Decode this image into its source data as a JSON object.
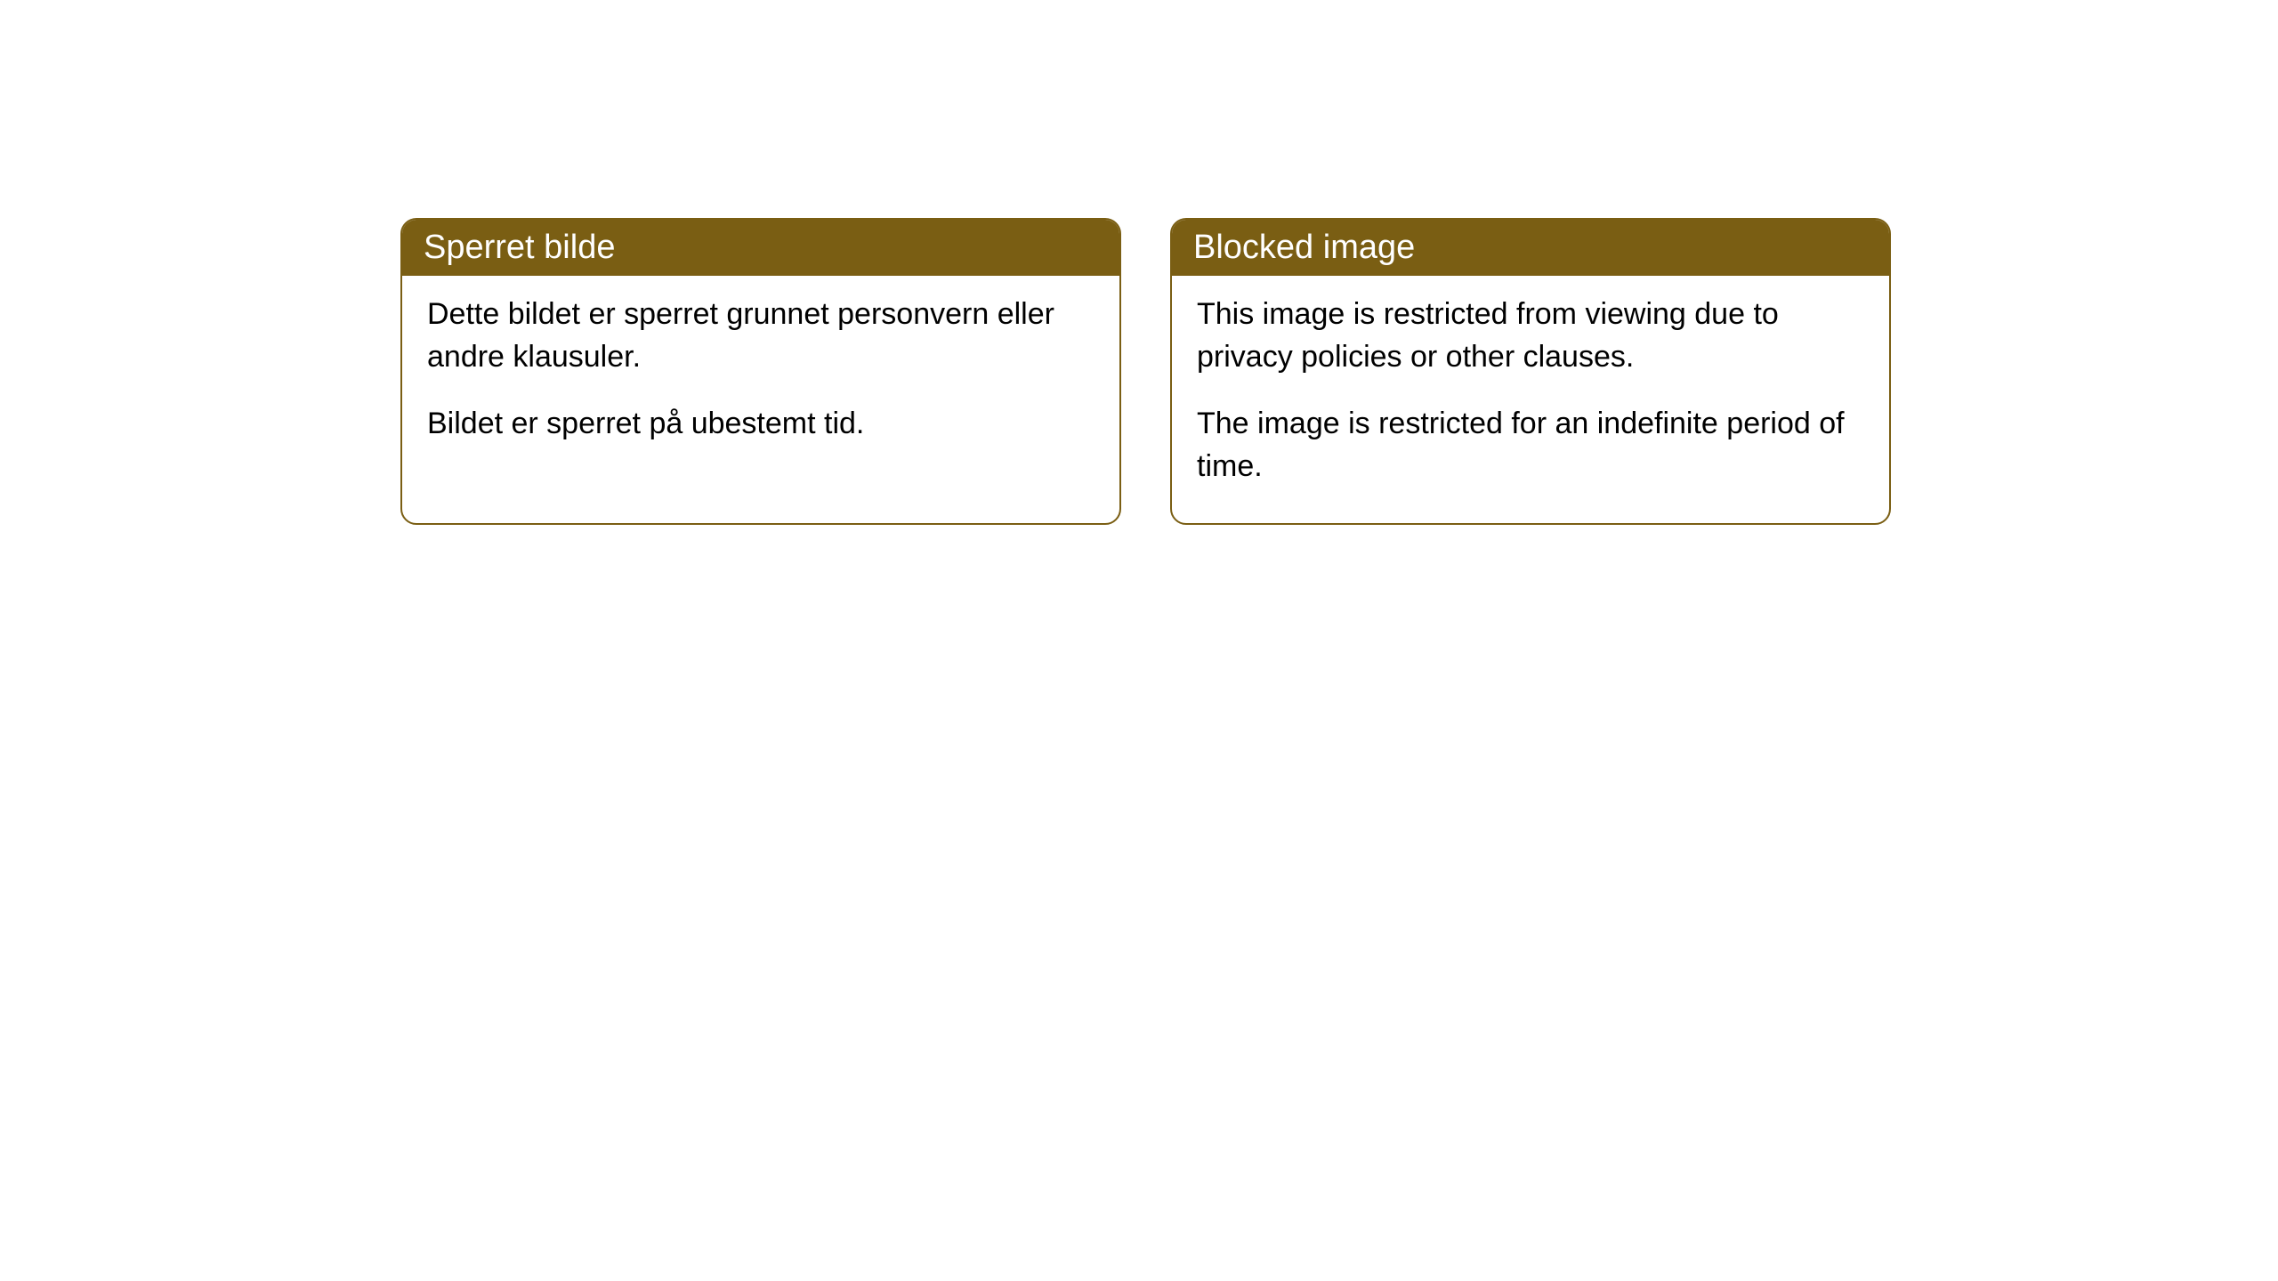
{
  "cards": [
    {
      "title": "Sperret bilde",
      "paragraph1": "Dette bildet er sperret grunnet personvern eller andre klausuler.",
      "paragraph2": "Bildet er sperret på ubestemt tid."
    },
    {
      "title": "Blocked image",
      "paragraph1": "This image is restricted from viewing due to privacy policies or other clauses.",
      "paragraph2": "The image is restricted for an indefinite period of time."
    }
  ],
  "styling": {
    "header_background": "#7a5e13",
    "header_text_color": "#ffffff",
    "border_color": "#7a5e13",
    "card_background": "#ffffff",
    "body_text_color": "#000000",
    "border_radius": 18,
    "title_fontsize": 38,
    "body_fontsize": 34
  }
}
